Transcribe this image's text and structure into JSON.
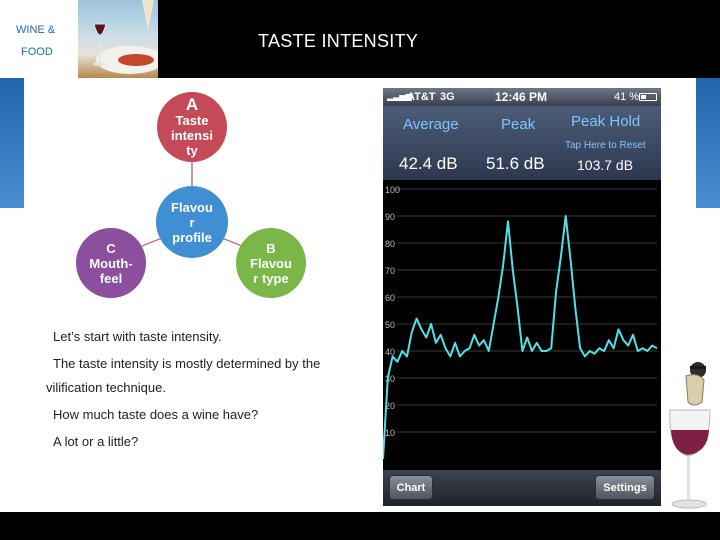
{
  "header": {
    "brand_line1": "WINE &",
    "brand_line2": "FOOD",
    "title": "TASTE INTENSITY"
  },
  "diagram": {
    "top": {
      "letter": "A",
      "lines": [
        "Taste",
        "intensi",
        "ty"
      ]
    },
    "center": {
      "lines": [
        "Flavou",
        "r",
        "profile"
      ]
    },
    "left": {
      "letter": "C",
      "lines": [
        "Mouth-",
        "feel"
      ]
    },
    "right": {
      "letter": "B",
      "lines": [
        "Flavou",
        "r type"
      ]
    }
  },
  "body_text": [
    "Let’s start with taste intensity.",
    "The taste intensity is mostly determined by the",
    "vilification technique.",
    "How much taste does a wine have?",
    "A lot or a little?"
  ],
  "phone": {
    "status": {
      "carrier": "AT&T",
      "network": "3G",
      "time": "12:46 PM",
      "battery_text": "41 %"
    },
    "metrics": {
      "average_label": "Average",
      "peak_label": "Peak",
      "peak_hold_label": "Peak Hold",
      "reset_hint": "Tap Here to Reset",
      "average_value": "42.4 dB",
      "peak_value": "51.6 dB",
      "peak_hold_value": "103.7 dB"
    },
    "toolbar": {
      "chart_label": "Chart",
      "settings_label": "Settings"
    }
  },
  "colors": {
    "trace": "#4fe0e8",
    "grid": "#3a3a3a",
    "accent_blue": "#1e6bb8"
  },
  "chart_data": {
    "type": "line",
    "title": "",
    "xlabel": "",
    "ylabel": "",
    "y_ticks": [
      "100",
      "90",
      "80",
      "70",
      "60",
      "50",
      "40",
      "30",
      "20",
      "10"
    ],
    "ylim": [
      0,
      100
    ],
    "grid": true,
    "series": [
      {
        "values": [
          0,
          30,
          38,
          36,
          40,
          38,
          47,
          52,
          48,
          45,
          50,
          43,
          46,
          41,
          38,
          43,
          38,
          40,
          41,
          46,
          42,
          44,
          40,
          50,
          60,
          72,
          88,
          70,
          56,
          40,
          45,
          40,
          43,
          40,
          40,
          41,
          62,
          75,
          90,
          74,
          56,
          41,
          38,
          40,
          39,
          41,
          40,
          44,
          41,
          48,
          44,
          42,
          46,
          40,
          41,
          40,
          42,
          41
        ]
      }
    ]
  }
}
